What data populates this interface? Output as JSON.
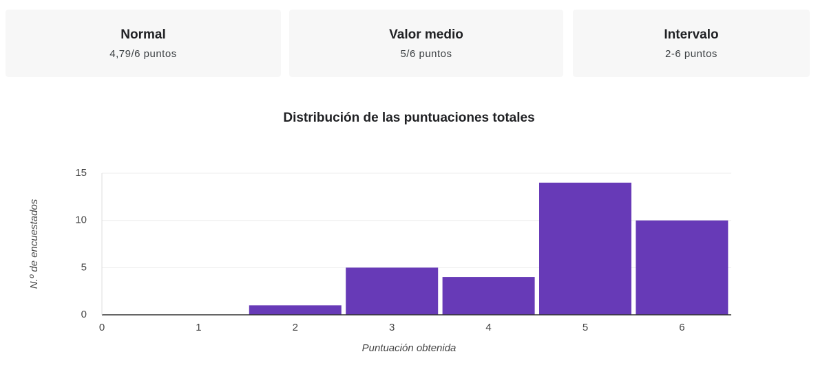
{
  "stats": [
    {
      "label": "Normal",
      "value": "4,79/6 puntos"
    },
    {
      "label": "Valor medio",
      "value": "5/6 puntos"
    },
    {
      "label": "Intervalo",
      "value": "2-6 puntos"
    }
  ],
  "chart_data": {
    "type": "bar",
    "title": "Distribución de las puntuaciones totales",
    "x_label": "Puntuación obtenida",
    "y_label": "N.º de encuestados",
    "categories": [
      "0",
      "1",
      "2",
      "3",
      "4",
      "5",
      "6"
    ],
    "values": [
      0,
      0,
      1,
      5,
      4,
      14,
      10
    ],
    "color": "#673ab7",
    "ylim": [
      0,
      15
    ],
    "yticks": [
      0,
      5,
      10,
      15
    ],
    "grid": true
  }
}
